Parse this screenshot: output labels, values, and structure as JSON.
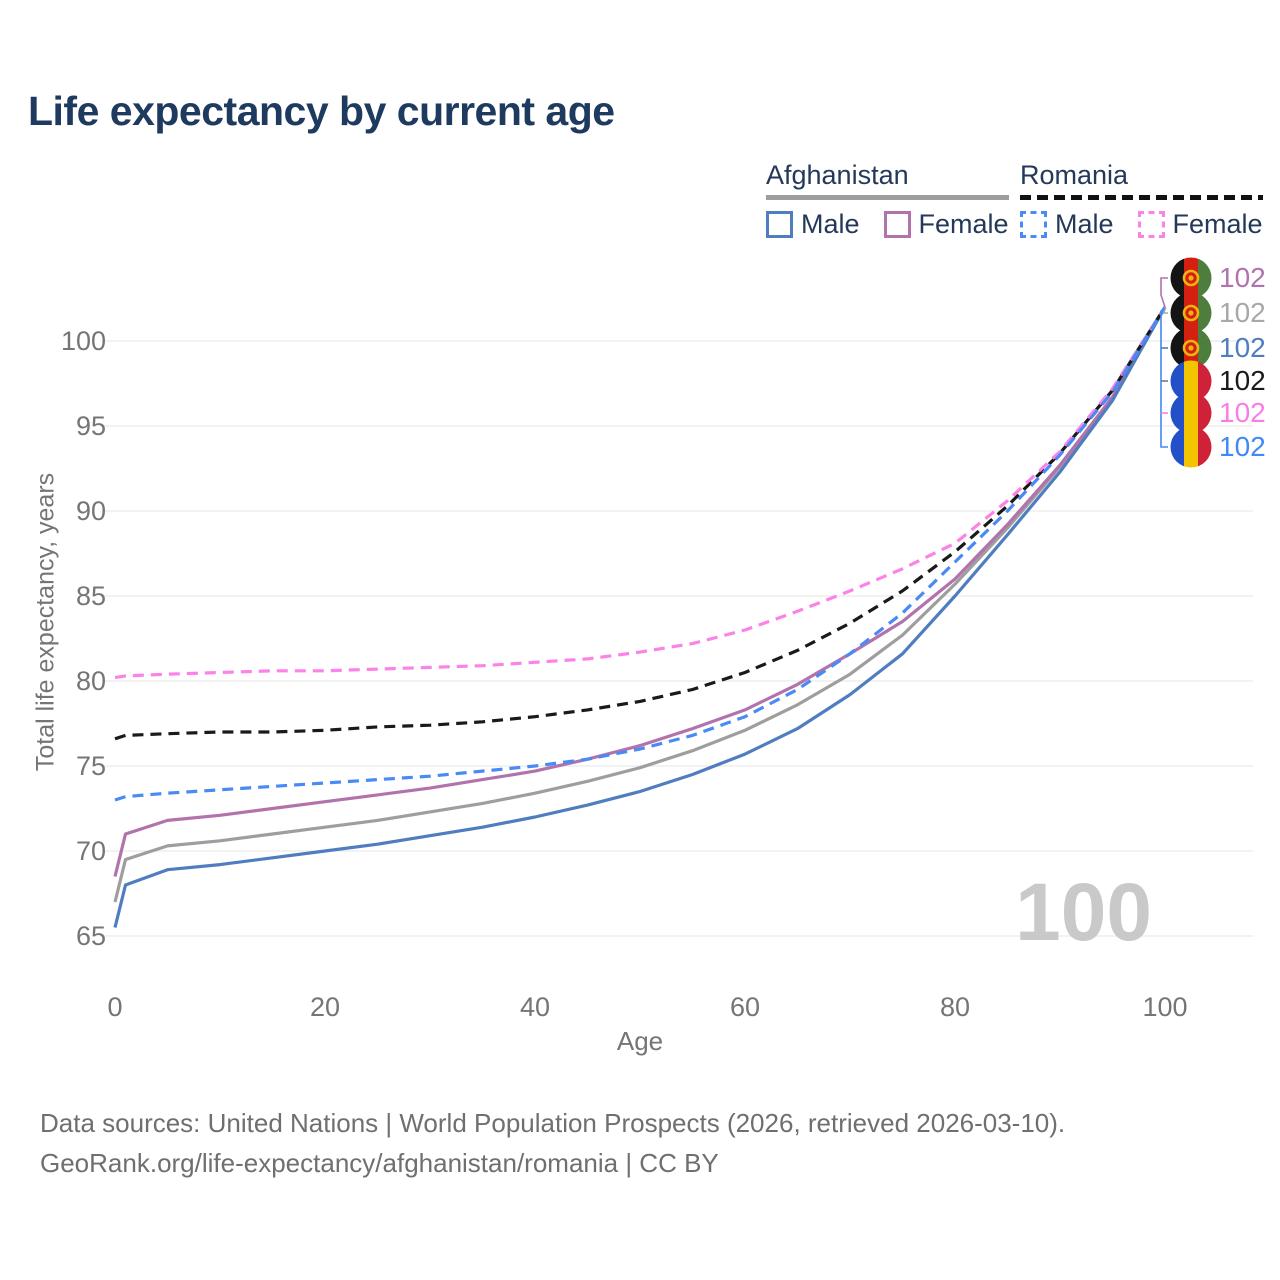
{
  "title": "Life expectancy by current age",
  "legend": {
    "groups": [
      {
        "country": "Afghanistan",
        "line_style": "solid",
        "underline_color": "#9e9e9e",
        "items": [
          {
            "label": "Male",
            "color": "#4f7dbf",
            "dashed": false
          },
          {
            "label": "Female",
            "color": "#b273ac",
            "dashed": false
          }
        ]
      },
      {
        "country": "Romania",
        "line_style": "dashed",
        "underline_color": "#111111",
        "items": [
          {
            "label": "Male",
            "color": "#4a8af4",
            "dashed": true
          },
          {
            "label": "Female",
            "color": "#fc82e8",
            "dashed": true
          }
        ]
      }
    ]
  },
  "watermark": "100",
  "end_labels": [
    {
      "flag": "afghanistan",
      "value": "102",
      "color": "#b273ac",
      "series": "Afghanistan Female"
    },
    {
      "flag": "afghanistan",
      "value": "102",
      "color": "#a8a8a8",
      "series": "Afghanistan Both sexes"
    },
    {
      "flag": "afghanistan",
      "value": "102",
      "color": "#4f7dbf",
      "series": "Afghanistan Male"
    },
    {
      "flag": "romania",
      "value": "102",
      "color": "#1a1a1a",
      "series": "Romania Both sexes"
    },
    {
      "flag": "romania",
      "value": "102",
      "color": "#fb7ce8",
      "series": "Romania Female"
    },
    {
      "flag": "romania",
      "value": "102",
      "color": "#4189f4",
      "series": "Romania Male"
    }
  ],
  "chart_data": {
    "type": "line",
    "title": "Life expectancy by current age",
    "xlabel": "Age",
    "ylabel": "Total life expectancy, years",
    "x_ticks": [
      0,
      20,
      40,
      60,
      80,
      100
    ],
    "y_ticks": [
      65,
      70,
      75,
      80,
      85,
      90,
      95,
      100
    ],
    "xlim": [
      0,
      100
    ],
    "ylim": [
      65,
      103
    ],
    "grid": "horizontal",
    "legend_position": "top-right",
    "x": [
      0,
      1,
      5,
      10,
      15,
      20,
      25,
      30,
      35,
      40,
      45,
      50,
      55,
      60,
      65,
      70,
      75,
      80,
      85,
      90,
      95,
      100
    ],
    "series": [
      {
        "name": "Afghanistan Both sexes",
        "color": "#9e9e9e",
        "dashed": false,
        "values": [
          67.0,
          69.5,
          70.3,
          70.6,
          71.0,
          71.4,
          71.8,
          72.3,
          72.8,
          73.4,
          74.1,
          74.9,
          75.9,
          77.1,
          78.6,
          80.4,
          82.7,
          85.7,
          89.0,
          92.6,
          96.7,
          102
        ]
      },
      {
        "name": "Afghanistan Female",
        "color": "#b273ac",
        "dashed": false,
        "values": [
          68.5,
          71.0,
          71.8,
          72.1,
          72.5,
          72.9,
          73.3,
          73.7,
          74.2,
          74.7,
          75.4,
          76.2,
          77.2,
          78.3,
          79.8,
          81.6,
          83.5,
          86.0,
          89.2,
          92.7,
          96.7,
          102
        ]
      },
      {
        "name": "Afghanistan Male",
        "color": "#4f7dbf",
        "dashed": false,
        "values": [
          65.5,
          68.0,
          68.9,
          69.2,
          69.6,
          70.0,
          70.4,
          70.9,
          71.4,
          72.0,
          72.7,
          73.5,
          74.5,
          75.7,
          77.2,
          79.2,
          81.6,
          85.0,
          88.6,
          92.3,
          96.5,
          102
        ]
      },
      {
        "name": "Romania Both sexes",
        "color": "#1a1a1a",
        "dashed": true,
        "values": [
          76.6,
          76.8,
          76.9,
          77.0,
          77.0,
          77.1,
          77.3,
          77.4,
          77.6,
          77.9,
          78.3,
          78.8,
          79.5,
          80.5,
          81.8,
          83.4,
          85.3,
          87.6,
          90.3,
          93.4,
          97.1,
          102
        ]
      },
      {
        "name": "Romania Female",
        "color": "#fc82e8",
        "dashed": true,
        "values": [
          80.2,
          80.3,
          80.4,
          80.5,
          80.6,
          80.6,
          80.7,
          80.8,
          80.9,
          81.1,
          81.3,
          81.7,
          82.2,
          83.0,
          84.1,
          85.3,
          86.6,
          88.1,
          90.6,
          93.5,
          97.2,
          102
        ]
      },
      {
        "name": "Romania Male",
        "color": "#4a8af4",
        "dashed": true,
        "values": [
          73.0,
          73.2,
          73.4,
          73.6,
          73.8,
          74.0,
          74.2,
          74.4,
          74.7,
          75.0,
          75.4,
          76.0,
          76.8,
          77.9,
          79.5,
          81.6,
          84.0,
          87.0,
          90.0,
          93.3,
          97.0,
          102
        ]
      }
    ]
  },
  "footer": {
    "line1": "Data sources: United Nations | World Population Prospects (2026, retrieved 2026-03-10).",
    "line2": "GeoRank.org/life-expectancy/afghanistan/romania | CC BY"
  },
  "colors": {
    "title": "#1f3a5f",
    "legend_text": "#24395a",
    "axis_text": "#757575",
    "gridline": "#e9e9e9",
    "watermark": "#c9c9c9",
    "footer_text": "#6f6f6f",
    "afghanistan_flag": [
      "#141414",
      "#d32011",
      "#4e7e3e",
      "#f0b310"
    ],
    "romania_flag": [
      "#2350c8",
      "#f2c500",
      "#cf2137"
    ]
  }
}
